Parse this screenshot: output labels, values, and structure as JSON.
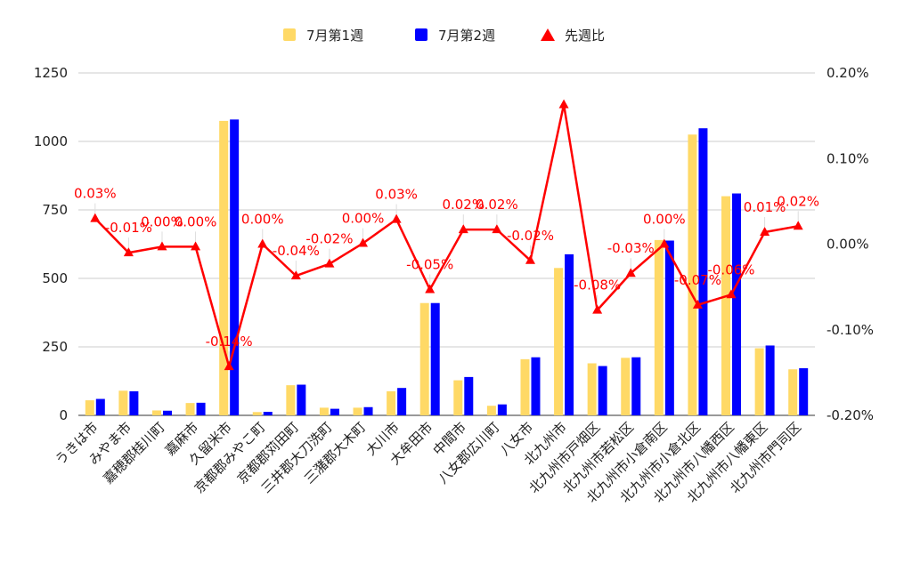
{
  "chart_data": {
    "type": "bar",
    "title": "",
    "legend": {
      "position": "top",
      "entries": [
        "7月第1週",
        "7月第2週",
        "先週比"
      ]
    },
    "categories": [
      "うきは市",
      "みやま市",
      "嘉穂郡桂川町",
      "嘉麻市",
      "久留米市",
      "京都郡みやこ町",
      "京都郡苅田町",
      "三井郡大刀洗町",
      "三潴郡大木町",
      "大川市",
      "大牟田市",
      "中間市",
      "八女郡広川町",
      "八女市",
      "北九州市",
      "北九州市戸畑区",
      "北九州市若松区",
      "北九州市小倉南区",
      "北九州市小倉北区",
      "北九州市八幡西区",
      "北九州市八幡東区",
      "北九州市門司区"
    ],
    "series": [
      {
        "name": "7月第1週",
        "axis": "left",
        "kind": "bar",
        "color": "#FFD966",
        "values": [
          55,
          90,
          18,
          45,
          1075,
          12,
          110,
          28,
          28,
          88,
          410,
          128,
          35,
          205,
          538,
          190,
          210,
          640,
          1025,
          800,
          245,
          168
        ]
      },
      {
        "name": "7月第2週",
        "axis": "left",
        "kind": "bar",
        "color": "#0000FF",
        "values": [
          60,
          88,
          17,
          46,
          1080,
          13,
          112,
          24,
          30,
          100,
          410,
          140,
          40,
          212,
          588,
          180,
          212,
          638,
          1048,
          810,
          255,
          172
        ]
      },
      {
        "name": "先週比",
        "axis": "right",
        "kind": "line",
        "color": "#FF0000",
        "marker": "triangle",
        "values": [
          0.03,
          -0.01,
          0.0,
          0.0,
          -0.14,
          0.0,
          -0.04,
          -0.02,
          0.0,
          0.03,
          -0.05,
          0.02,
          0.02,
          -0.02,
          0.17,
          -0.08,
          -0.03,
          0.0,
          -0.07,
          -0.06,
          0.01,
          0.02
        ],
        "plot_values": [
          0.03,
          -0.01,
          -0.003,
          -0.003,
          -0.143,
          0.0,
          -0.037,
          -0.023,
          0.001,
          0.029,
          -0.053,
          0.017,
          0.017,
          -0.019,
          0.163,
          -0.077,
          -0.034,
          0.0,
          -0.071,
          -0.059,
          0.014,
          0.021
        ],
        "labels": [
          "0.03%",
          "-0.01%",
          "0.00%",
          "0.00%",
          "-0.14%",
          "0.00%",
          "-0.04%",
          "-0.02%",
          "0.00%",
          "0.03%",
          "-0.05%",
          "0.02%",
          "0.02%",
          "-0.02%",
          "",
          "-0.08%",
          "-0.03%",
          "0.00%",
          "-0.07%",
          "-0.06%",
          "0.01%",
          "0.02%"
        ]
      }
    ],
    "yleft": {
      "min": 0,
      "max": 1250,
      "ticks": [
        0,
        250,
        500,
        750,
        1000,
        1250
      ],
      "tick_labels": [
        "0",
        "250",
        "500",
        "750",
        "1000",
        "1250"
      ]
    },
    "yright": {
      "min": -0.2,
      "max": 0.2,
      "ticks": [
        -0.2,
        -0.1,
        0.0,
        0.1,
        0.2
      ],
      "tick_labels": [
        "-0.20%",
        "-0.10%",
        "0.00%",
        "0.10%",
        "0.20%"
      ]
    },
    "grid": true
  }
}
